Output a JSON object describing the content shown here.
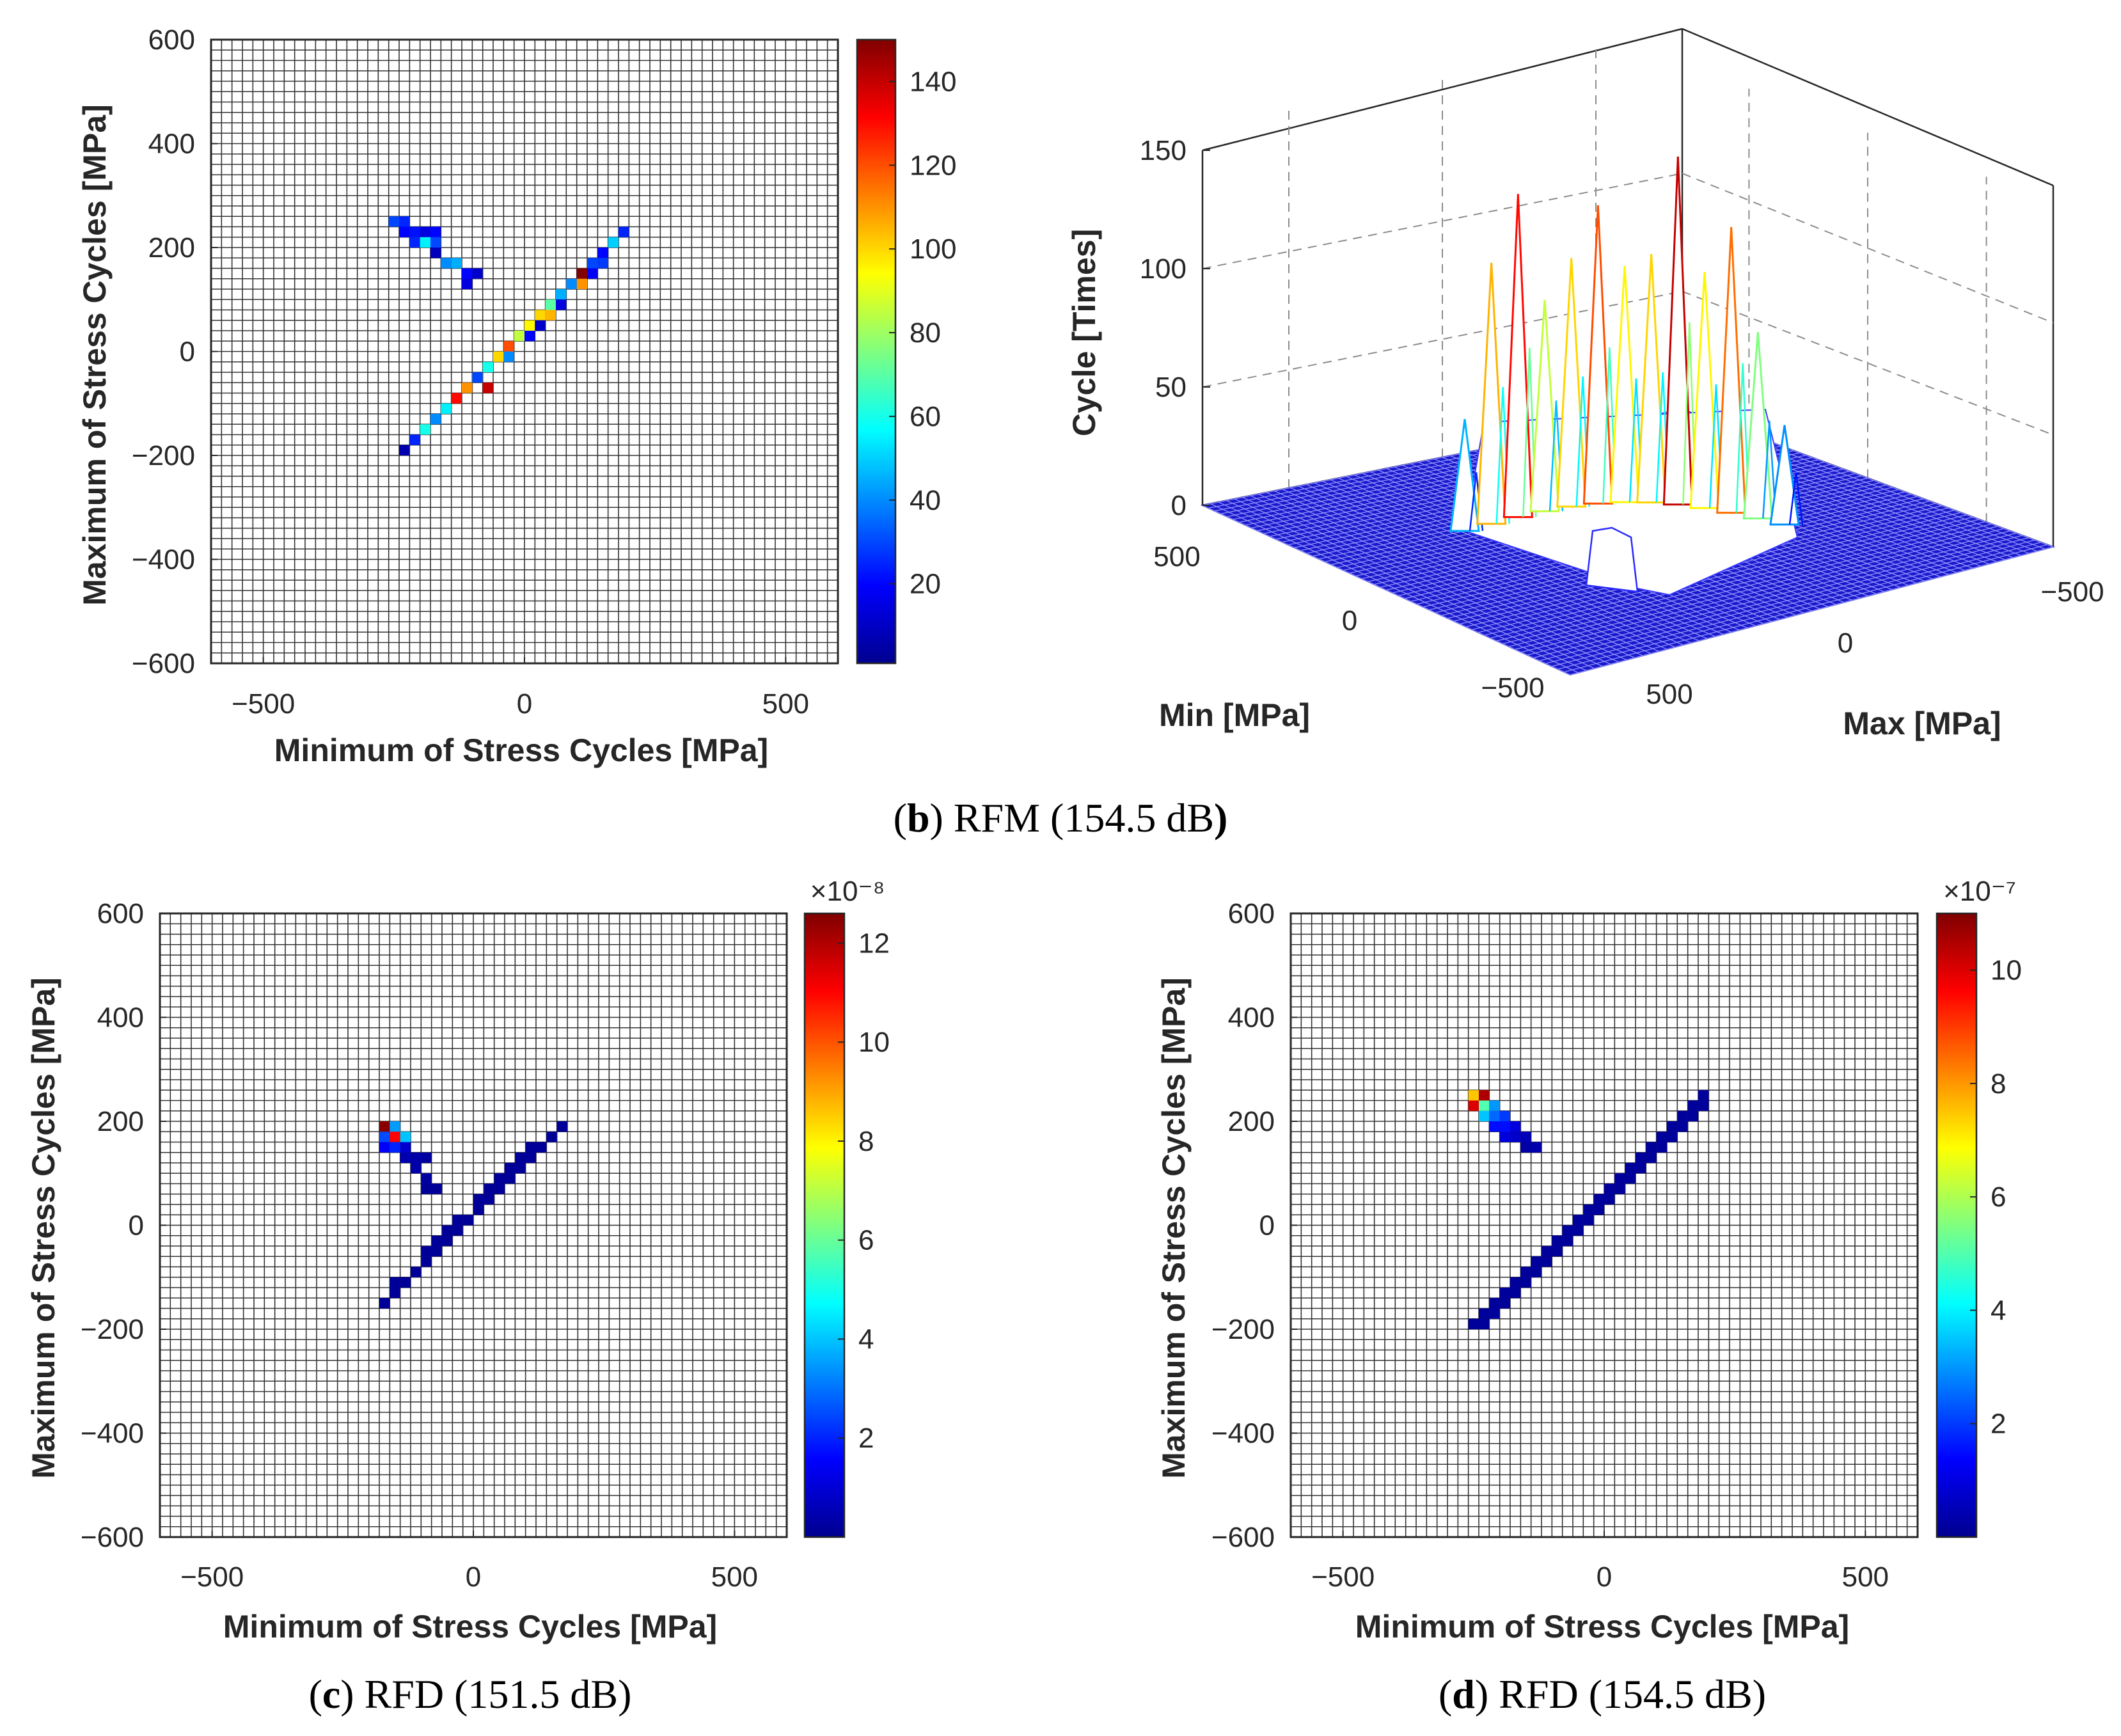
{
  "chart_data": [
    {
      "id": "b_heatmap",
      "type": "heatmap",
      "title": "",
      "xlabel": "Minimum of Stress Cycles [MPa]",
      "ylabel": "Maximum of Stress Cycles [MPa]",
      "xlim": [
        -600,
        600
      ],
      "ylim": [
        -600,
        600
      ],
      "xticks": [
        "−500",
        "0",
        "500"
      ],
      "xtick_values": [
        -500,
        0,
        500
      ],
      "yticks": [
        "600",
        "400",
        "200",
        "0",
        "−200",
        "−400",
        "−600"
      ],
      "ytick_values": [
        600,
        400,
        200,
        0,
        -200,
        -400,
        -600
      ],
      "bin_size": 20,
      "colorbar": {
        "min": 1,
        "max": 150,
        "ticks": [
          "20",
          "40",
          "60",
          "80",
          "100",
          "120",
          "140"
        ],
        "tick_values": [
          20,
          40,
          60,
          80,
          100,
          120,
          140
        ],
        "exponent": ""
      },
      "cells": [
        [
          -250,
          250,
          30
        ],
        [
          -230,
          250,
          25
        ],
        [
          -240,
          230,
          20
        ],
        [
          -220,
          230,
          22
        ],
        [
          -200,
          220,
          15
        ],
        [
          -180,
          220,
          20
        ],
        [
          -210,
          210,
          25
        ],
        [
          -190,
          200,
          55
        ],
        [
          -170,
          200,
          30
        ],
        [
          -180,
          180,
          10
        ],
        [
          -160,
          170,
          40
        ],
        [
          -140,
          160,
          45
        ],
        [
          -120,
          150,
          20
        ],
        [
          -100,
          150,
          12
        ],
        [
          -120,
          130,
          15
        ],
        [
          -240,
          -200,
          8
        ],
        [
          -220,
          -180,
          25
        ],
        [
          -200,
          -160,
          60
        ],
        [
          -180,
          -140,
          40
        ],
        [
          -160,
          -120,
          45
        ],
        [
          -140,
          -100,
          130
        ],
        [
          -120,
          -80,
          110
        ],
        [
          -100,
          -60,
          90
        ],
        [
          -80,
          -40,
          60
        ],
        [
          -60,
          -20,
          100
        ],
        [
          -40,
          0,
          120
        ],
        [
          -20,
          20,
          85
        ],
        [
          0,
          40,
          95
        ],
        [
          20,
          60,
          100
        ],
        [
          40,
          80,
          70
        ],
        [
          60,
          100,
          45
        ],
        [
          80,
          120,
          130
        ],
        [
          100,
          140,
          150
        ],
        [
          120,
          160,
          30
        ],
        [
          140,
          180,
          20
        ],
        [
          160,
          200,
          50
        ],
        [
          180,
          220,
          25
        ],
        [
          -150,
          -120,
          55
        ],
        [
          -90,
          -60,
          30
        ],
        [
          30,
          50,
          12
        ],
        [
          70,
          90,
          15
        ],
        [
          110,
          130,
          110
        ],
        [
          130,
          150,
          18
        ],
        [
          150,
          170,
          28
        ],
        [
          90,
          120,
          40
        ],
        [
          50,
          70,
          105
        ],
        [
          -30,
          -10,
          40
        ],
        [
          -80,
          -70,
          140
        ],
        [
          10,
          30,
          20
        ]
      ]
    },
    {
      "id": "b_surface",
      "type": "surface3d",
      "zlabel": "Cycle [Times]",
      "xlabel": "Min [MPa]",
      "ylabel": "Max [MPa]",
      "zlim": [
        0,
        150
      ],
      "zticks": [
        "150",
        "100",
        "50",
        "0"
      ],
      "ztick_values": [
        150,
        100,
        50,
        0
      ],
      "min_ticks": [
        "500",
        "0",
        "−500"
      ],
      "max_ticks": [
        "−500",
        "0",
        "500"
      ],
      "peaks_min": [
        -120,
        -100,
        -80,
        -60,
        -40,
        -20,
        0,
        20,
        40,
        60,
        80,
        100,
        120
      ],
      "peaks_height": [
        45,
        105,
        130,
        85,
        100,
        120,
        95,
        100,
        140,
        95,
        115,
        75,
        40
      ]
    },
    {
      "id": "c_heatmap",
      "type": "heatmap",
      "xlabel": "Minimum of Stress Cycles [MPa]",
      "ylabel": "Maximum of Stress Cycles [MPa]",
      "xlim": [
        -600,
        600
      ],
      "ylim": [
        -600,
        600
      ],
      "xticks": [
        "−500",
        "0",
        "500"
      ],
      "xtick_values": [
        -500,
        0,
        500
      ],
      "yticks": [
        "600",
        "400",
        "200",
        "0",
        "−200",
        "−400",
        "−600"
      ],
      "ytick_values": [
        600,
        400,
        200,
        0,
        -200,
        -400,
        -600
      ],
      "bin_size": 20,
      "colorbar": {
        "min": 0,
        "max": 12.6,
        "ticks": [
          "2",
          "4",
          "6",
          "8",
          "10",
          "12"
        ],
        "tick_values": [
          2,
          4,
          6,
          8,
          10,
          12
        ],
        "exponent": "×10⁻⁸"
      },
      "cells": [
        [
          -180,
          180,
          12.5
        ],
        [
          -160,
          180,
          3.5
        ],
        [
          -180,
          160,
          2.5
        ],
        [
          -160,
          160,
          11
        ],
        [
          -140,
          160,
          4
        ],
        [
          -180,
          140,
          1.5
        ],
        [
          -160,
          140,
          2
        ],
        [
          -140,
          140,
          1
        ],
        [
          -140,
          120,
          0.6
        ],
        [
          -120,
          120,
          0.5
        ],
        [
          -100,
          120,
          0.4
        ],
        [
          -120,
          100,
          0.5
        ],
        [
          -100,
          80,
          0.4
        ],
        [
          -80,
          60,
          0.3
        ],
        [
          -100,
          60,
          0.3
        ],
        [
          -180,
          -160,
          0.3
        ],
        [
          -160,
          -140,
          0.3
        ],
        [
          -160,
          -120,
          0.3
        ],
        [
          -140,
          -120,
          0.3
        ],
        [
          -120,
          -100,
          0.3
        ],
        [
          -100,
          -80,
          0.3
        ],
        [
          -80,
          -60,
          0.3
        ],
        [
          -60,
          -40,
          0.3
        ],
        [
          -40,
          -20,
          0.3
        ],
        [
          -20,
          0,
          0.3
        ],
        [
          0,
          20,
          0.3
        ],
        [
          20,
          40,
          0.3
        ],
        [
          40,
          60,
          0.3
        ],
        [
          60,
          80,
          0.3
        ],
        [
          80,
          100,
          0.3
        ],
        [
          100,
          120,
          0.3
        ],
        [
          120,
          140,
          0.3
        ],
        [
          140,
          160,
          0.3
        ],
        [
          160,
          180,
          0.3
        ],
        [
          -100,
          -60,
          0.3
        ],
        [
          -80,
          -40,
          0.3
        ],
        [
          -40,
          0,
          0.3
        ],
        [
          0,
          40,
          0.3
        ],
        [
          40,
          80,
          0.3
        ],
        [
          60,
          100,
          0.3
        ],
        [
          80,
          120,
          0.3
        ],
        [
          100,
          140,
          0.3
        ],
        [
          20,
          60,
          0.3
        ],
        [
          -60,
          -20,
          0.3
        ]
      ]
    },
    {
      "id": "d_heatmap",
      "type": "heatmap",
      "xlabel": "Minimum of Stress Cycles [MPa]",
      "ylabel": "Maximum of Stress Cycles [MPa]",
      "xlim": [
        -600,
        600
      ],
      "ylim": [
        -600,
        600
      ],
      "xticks": [
        "−500",
        "0",
        "500"
      ],
      "xtick_values": [
        -500,
        0,
        500
      ],
      "yticks": [
        "600",
        "400",
        "200",
        "0",
        "−200",
        "−400",
        "−600"
      ],
      "ytick_values": [
        600,
        400,
        200,
        0,
        -200,
        -400,
        -600
      ],
      "bin_size": 20,
      "colorbar": {
        "min": 0,
        "max": 11,
        "ticks": [
          "2",
          "4",
          "6",
          "8",
          "10"
        ],
        "tick_values": [
          2,
          4,
          6,
          8,
          10
        ],
        "exponent": "×10⁻⁷"
      },
      "cells": [
        [
          -250,
          250,
          7.5
        ],
        [
          -230,
          250,
          10.5
        ],
        [
          -250,
          230,
          10
        ],
        [
          -230,
          230,
          5
        ],
        [
          -210,
          230,
          3
        ],
        [
          -230,
          210,
          3.5
        ],
        [
          -210,
          210,
          2.5
        ],
        [
          -190,
          210,
          2
        ],
        [
          -210,
          190,
          1.5
        ],
        [
          -190,
          190,
          1.5
        ],
        [
          -170,
          190,
          1
        ],
        [
          -190,
          170,
          1
        ],
        [
          -170,
          170,
          0.8
        ],
        [
          -150,
          170,
          0.6
        ],
        [
          -130,
          150,
          0.5
        ],
        [
          -150,
          150,
          0.4
        ],
        [
          -250,
          -200,
          0.3
        ],
        [
          -230,
          -200,
          0.3
        ],
        [
          -230,
          -180,
          0.3
        ],
        [
          -210,
          -160,
          0.3
        ],
        [
          -190,
          -140,
          0.3
        ],
        [
          -170,
          -120,
          0.3
        ],
        [
          -150,
          -100,
          0.3
        ],
        [
          -130,
          -80,
          0.3
        ],
        [
          -110,
          -60,
          0.3
        ],
        [
          -90,
          -40,
          0.3
        ],
        [
          -70,
          -20,
          0.3
        ],
        [
          -50,
          0,
          0.3
        ],
        [
          -30,
          20,
          0.3
        ],
        [
          -10,
          40,
          0.3
        ],
        [
          10,
          60,
          0.3
        ],
        [
          30,
          80,
          0.3
        ],
        [
          50,
          100,
          0.3
        ],
        [
          70,
          120,
          0.3
        ],
        [
          90,
          140,
          0.3
        ],
        [
          110,
          160,
          0.3
        ],
        [
          130,
          180,
          0.3
        ],
        [
          150,
          200,
          0.3
        ],
        [
          170,
          220,
          0.3
        ],
        [
          190,
          240,
          0.3
        ],
        [
          -210,
          -180,
          0.3
        ],
        [
          -190,
          -160,
          0.3
        ],
        [
          -170,
          -140,
          0.3
        ],
        [
          -150,
          -120,
          0.3
        ],
        [
          -130,
          -100,
          0.3
        ],
        [
          -110,
          -80,
          0.3
        ],
        [
          -90,
          -60,
          0.3
        ],
        [
          -70,
          -40,
          0.3
        ],
        [
          -50,
          -20,
          0.3
        ],
        [
          -30,
          0,
          0.3
        ],
        [
          -10,
          20,
          0.3
        ],
        [
          10,
          40,
          0.3
        ],
        [
          30,
          60,
          0.3
        ],
        [
          50,
          80,
          0.3
        ],
        [
          70,
          100,
          0.3
        ],
        [
          90,
          120,
          0.3
        ],
        [
          110,
          140,
          0.3
        ],
        [
          130,
          160,
          0.3
        ],
        [
          150,
          180,
          0.3
        ],
        [
          170,
          200,
          0.3
        ],
        [
          190,
          220,
          0.3
        ],
        [
          -90,
          -40,
          0.3
        ],
        [
          -70,
          -20,
          0.3
        ]
      ]
    }
  ],
  "captions": {
    "b": {
      "letter": "b",
      "open": "(",
      "close": ") ",
      "text": "RFM (154.5 dB",
      "tail": ")"
    },
    "c": {
      "letter": "c",
      "open": "(",
      "close": ") ",
      "text": "RFD (151.5 dB)"
    },
    "d": {
      "letter": "d",
      "open": "(",
      "close": ") ",
      "text": "RFD (154.5 dB)"
    }
  }
}
